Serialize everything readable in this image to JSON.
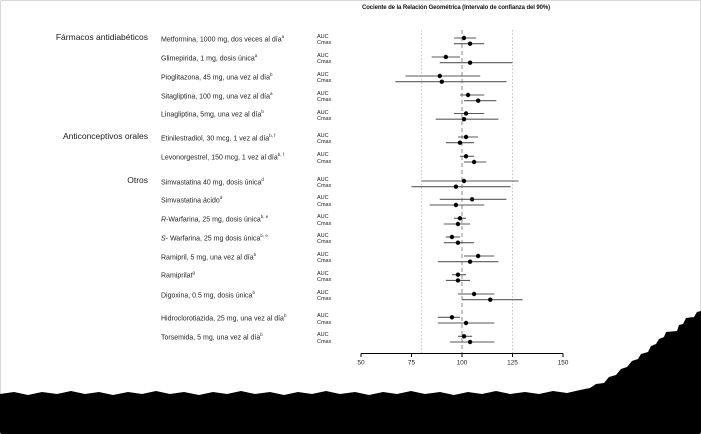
{
  "chart_data": {
    "type": "scatter",
    "subtype": "forest-plot",
    "title": "Cociente de la Relación Geométrica (Intervalo de confianza del 90%)",
    "xlabel": "",
    "xlim": [
      50,
      150
    ],
    "xticks": [
      50,
      75,
      100,
      125,
      150
    ],
    "reference_lines": {
      "dashed": [
        100
      ],
      "dotted": [
        80,
        125
      ]
    },
    "metrics": [
      "AUC",
      "Cmax"
    ],
    "groups": [
      {
        "label": "Fármacos antidiabéticos",
        "drugs": [
          {
            "label": "Metformina, 1000 mg, dos veces al día",
            "sup": "a",
            "AUC": {
              "ratio": 101,
              "ci90": [
                96,
                107
              ]
            },
            "Cmax": {
              "ratio": 104,
              "ci90": [
                96,
                111
              ]
            }
          },
          {
            "label": "Glimepirida, 1 mg, dosis única",
            "sup": "a",
            "AUC": {
              "ratio": 92,
              "ci90": [
                85,
                99
              ]
            },
            "Cmax": {
              "ratio": 104,
              "ci90": [
                89,
                125
              ]
            }
          },
          {
            "label": "Pioglitazona, 45 mg, una vez al día",
            "sup": "b",
            "AUC": {
              "ratio": 89,
              "ci90": [
                72,
                109
              ]
            },
            "Cmax": {
              "ratio": 90,
              "ci90": [
                67,
                122
              ]
            }
          },
          {
            "label": "Sitagliptina, 100 mg, una vez al día",
            "sup": "a",
            "AUC": {
              "ratio": 103,
              "ci90": [
                99,
                111
              ]
            },
            "Cmax": {
              "ratio": 108,
              "ci90": [
                101,
                117
              ]
            }
          },
          {
            "label": "Linagliptina, 5mg, una vez al día",
            "sup": "b",
            "AUC": {
              "ratio": 102,
              "ci90": [
                96,
                111
              ]
            },
            "Cmax": {
              "ratio": 101,
              "ci90": [
                87,
                118
              ]
            }
          }
        ]
      },
      {
        "label": "Anticonceptivos orales",
        "drugs": [
          {
            "label": "Etinilestradiol, 30 mcg, 1 vez al día",
            "sup": "b, f",
            "AUC": {
              "ratio": 102,
              "ci90": [
                98,
                108
              ]
            },
            "Cmax": {
              "ratio": 99,
              "ci90": [
                92,
                106
              ]
            }
          },
          {
            "label": "Levonorgestrel, 150 mcg, 1 vez al día",
            "sup": "b, f",
            "AUC": {
              "ratio": 102,
              "ci90": [
                99,
                106
              ]
            },
            "Cmax": {
              "ratio": 106,
              "ci90": [
                101,
                112
              ]
            }
          }
        ]
      },
      {
        "label": "Otros",
        "drugs": [
          {
            "label": "Simvastatina 40 mg, dosis única",
            "sup": "d",
            "AUC": {
              "ratio": 101,
              "ci90": [
                80,
                128
              ]
            },
            "Cmax": {
              "ratio": 97,
              "ci90": [
                75,
                124
              ]
            }
          },
          {
            "label": "Simvastatina ácido",
            "sup": "d",
            "AUC": {
              "ratio": 105,
              "ci90": [
                89,
                122
              ]
            },
            "Cmax": {
              "ratio": 97,
              "ci90": [
                84,
                111
              ]
            }
          },
          {
            "prefix": "R",
            "label": "-Warfarina, 25 mg, dosis única",
            "sup": "b, e",
            "AUC": {
              "ratio": 99,
              "ci90": [
                96,
                102
              ]
            },
            "Cmax": {
              "ratio": 98,
              "ci90": [
                91,
                104
              ]
            }
          },
          {
            "prefix": "S",
            "label": "- Warfarina, 25 mg dosis única",
            "sup": "b, e",
            "AUC": {
              "ratio": 95,
              "ci90": [
                92,
                99
              ]
            },
            "Cmax": {
              "ratio": 98,
              "ci90": [
                91,
                106
              ]
            }
          },
          {
            "label": "Ramipril, 5 mg, una vez al día",
            "sup": "b",
            "AUC": {
              "ratio": 108,
              "ci90": [
                101,
                116
              ]
            },
            "Cmax": {
              "ratio": 104,
              "ci90": [
                88,
                118
              ]
            }
          },
          {
            "label": "Ramiprilat",
            "sup": "g",
            "AUC": {
              "ratio": 98,
              "ci90": [
                95,
                102
              ]
            },
            "Cmax": {
              "ratio": 98,
              "ci90": [
                92,
                104
              ]
            }
          },
          {
            "label": "Digoxina, 0.5 mg, dosis única",
            "sup": "b",
            "AUC": {
              "ratio": 106,
              "ci90": [
                98,
                116
              ]
            },
            "Cmax": {
              "ratio": 114,
              "ci90": [
                100,
                130
              ]
            }
          },
          {
            "label": "Hidroclorotiazida, 25 mg, una vez al día",
            "sup": "b",
            "AUC": {
              "ratio": 95,
              "ci90": [
                88,
                99
              ]
            },
            "Cmax": {
              "ratio": 102,
              "ci90": [
                88,
                116
              ]
            }
          },
          {
            "label": "Torsemida, 5 mg, una vez al día",
            "sup": "b",
            "AUC": {
              "ratio": 101,
              "ci90": [
                98,
                105
              ]
            },
            "Cmax": {
              "ratio": 104,
              "ci90": [
                94,
                116
              ]
            }
          }
        ]
      }
    ],
    "colors": {
      "point": "#000000",
      "ci_line": "#5a5a5a",
      "dashed_ref": "#8a8a8a",
      "dotted_ref": "#c6c6c6",
      "redaction": "#000000"
    },
    "redaction_note": "bottom footnote band blacked out"
  }
}
